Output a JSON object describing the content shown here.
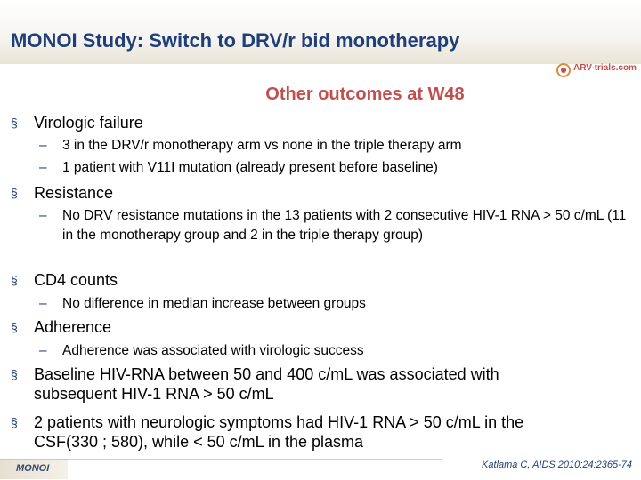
{
  "header": {
    "title": "MONOI Study: Switch to DRV/r bid monotherapy",
    "logo_text": "ARV-trials.com"
  },
  "subtitle": "Other outcomes at W48",
  "bullet_glyph": "§",
  "dash_glyph": "–",
  "items": [
    {
      "text": "Virologic failure",
      "subs": [
        "3 in the DRV/r monotherapy arm vs none in the triple therapy arm",
        "1 patient with V11I mutation (already present before baseline)"
      ]
    },
    {
      "text": "Resistance",
      "subs": [
        "No DRV resistance mutations in the 13 patients with 2 consecutive HIV-1 RNA > 50 c/mL (11 in the monotherapy group and 2 in the triple therapy group)"
      ]
    },
    {
      "text": "CD4 counts",
      "subs": [
        "No difference in median increase between groups"
      ]
    },
    {
      "text": "Adherence",
      "subs": [
        "Adherence was associated with virologic success"
      ]
    },
    {
      "text": "Baseline HIV-RNA between 50 and 400 c/mL was associated with subsequent HIV-1 RNA > 50 c/mL",
      "subs": []
    },
    {
      "text": "2 patients with neurologic symptoms had HIV-1 RNA > 50 c/mL in the CSF(330 ; 580), while < 50 c/mL in the plasma",
      "subs": []
    }
  ],
  "footer": {
    "study_tag": "MONOI",
    "citation": "Katlama C, AIDS 2010;24:2365-74"
  }
}
